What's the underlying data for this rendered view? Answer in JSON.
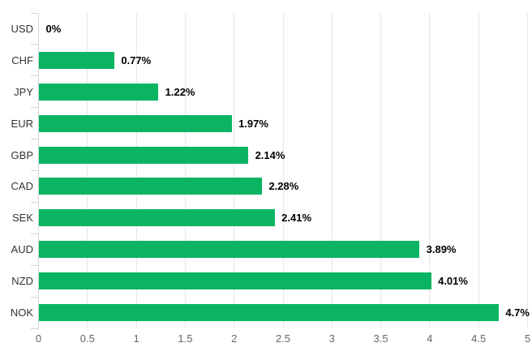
{
  "chart_data": {
    "type": "bar",
    "orientation": "horizontal",
    "title": "",
    "xlabel": "",
    "ylabel": "",
    "categories": [
      "USD",
      "CHF",
      "JPY",
      "EUR",
      "GBP",
      "CAD",
      "SEK",
      "AUD",
      "NZD",
      "NOK"
    ],
    "values": [
      0,
      0.77,
      1.22,
      1.97,
      2.14,
      2.28,
      2.41,
      3.89,
      4.01,
      4.7
    ],
    "value_labels": [
      "0%",
      "0.77%",
      "1.22%",
      "1.97%",
      "2.14%",
      "2.28%",
      "2.41%",
      "3.89%",
      "4.01%",
      "4.7%"
    ],
    "x_ticks": [
      0,
      0.5,
      1,
      1.5,
      2,
      2.5,
      3,
      3.5,
      4,
      4.5,
      5
    ],
    "x_tick_labels": [
      "0",
      "0.5",
      "1",
      "1.5",
      "2",
      "2.5",
      "3",
      "3.5",
      "4",
      "4.5",
      "5"
    ],
    "xlim": [
      0,
      5
    ],
    "grid": true,
    "legend": false,
    "colors": {
      "bar": "#0ab463",
      "grid": "#e6e6e6",
      "axis": "#d6d6d6",
      "category_label": "#333333",
      "value_label": "#000000",
      "tick_label": "#666666",
      "background": "#ffffff"
    }
  }
}
